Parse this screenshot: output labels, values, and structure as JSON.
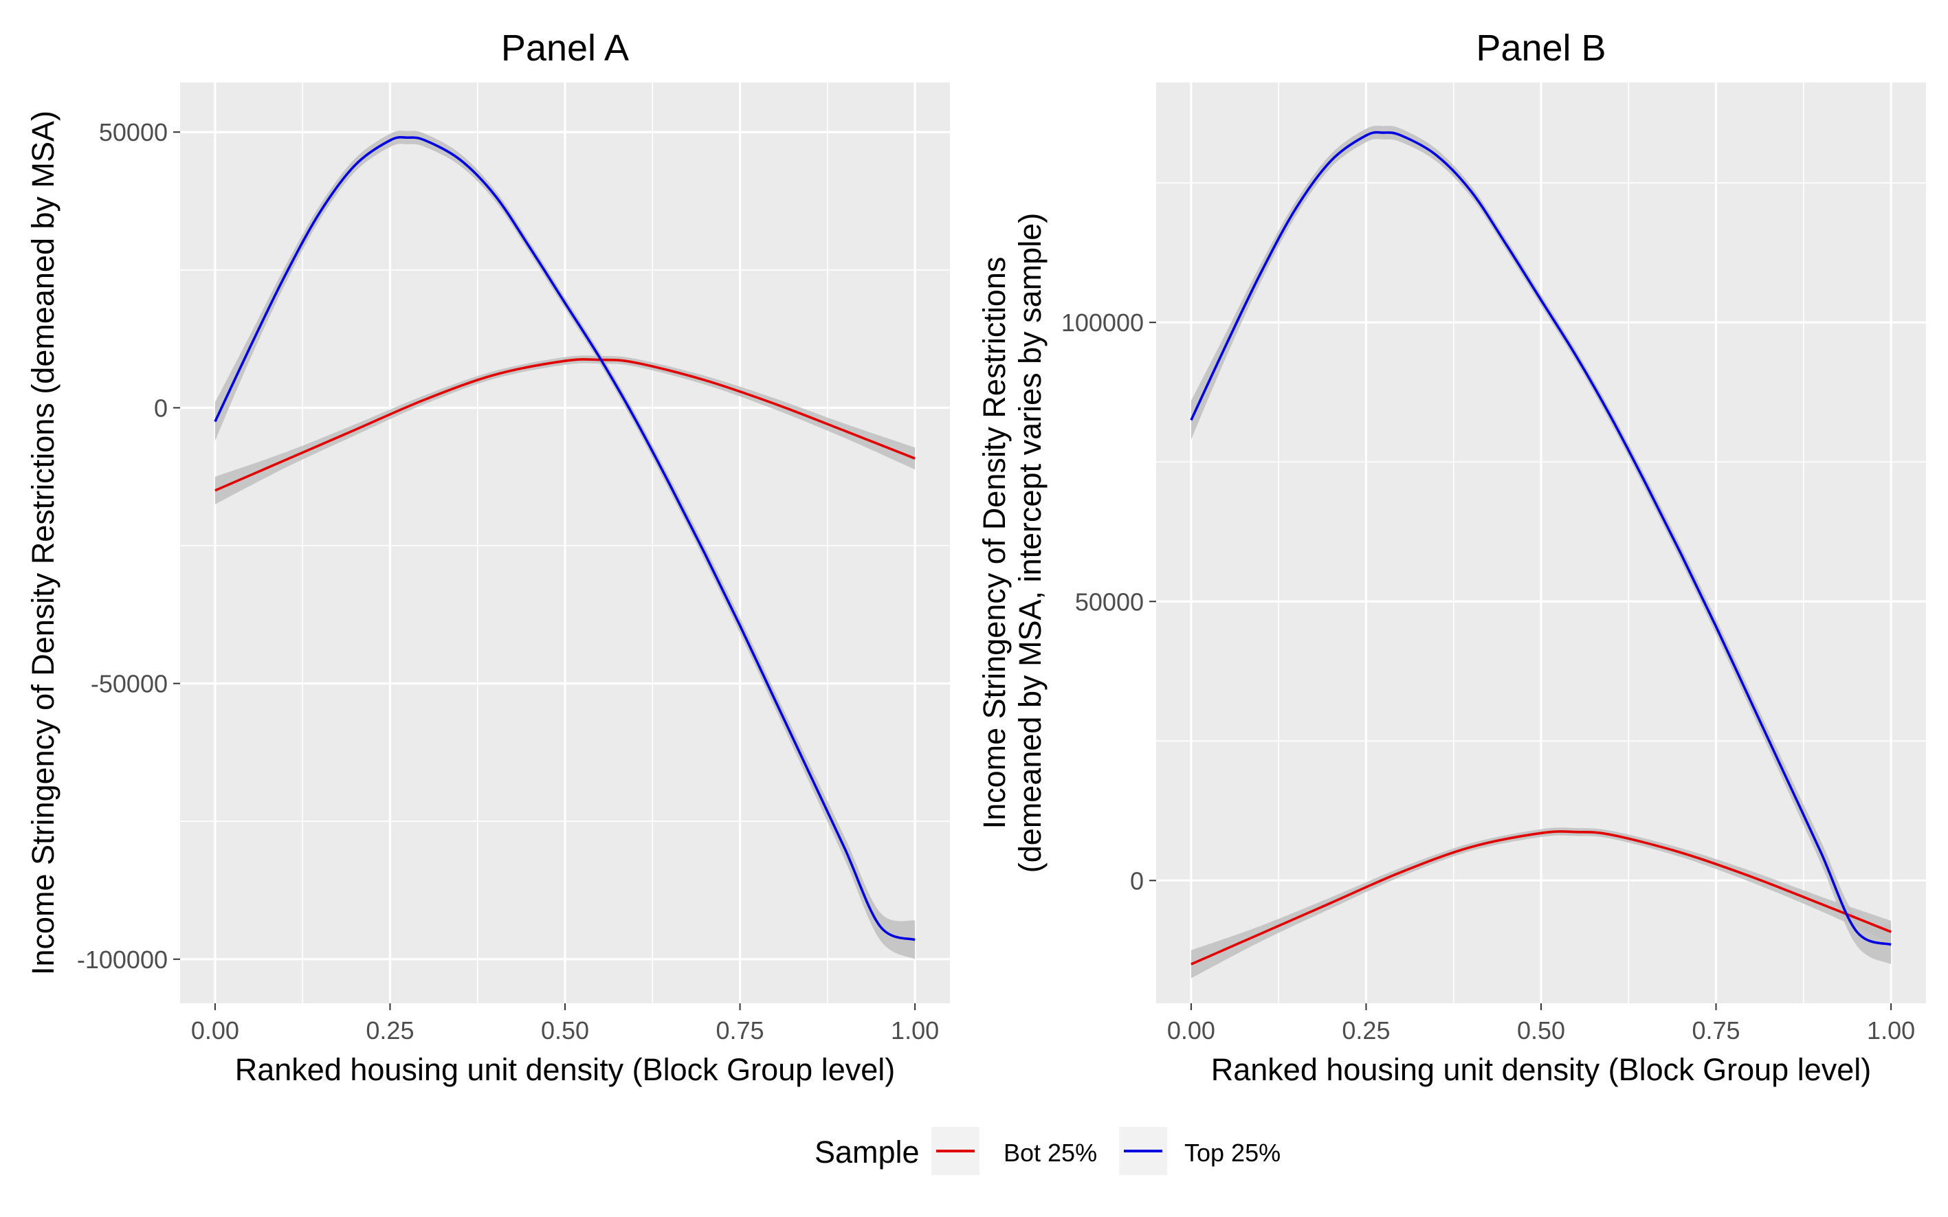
{
  "chart_data": [
    {
      "type": "line",
      "title": "Panel A",
      "xlabel": "Ranked housing unit density (Block Group level)",
      "ylabel": "Income Stringency of Density Restrictions (demeaned by MSA)",
      "xlim": [
        -0.05,
        1.05
      ],
      "ylim": [
        -108000,
        59000
      ],
      "x_ticks": [
        0,
        0.25,
        0.5,
        0.75,
        1
      ],
      "x_tick_labels": [
        "0.00",
        "0.25",
        "0.50",
        "0.75",
        "1.00"
      ],
      "y_ticks": [
        -100000,
        -50000,
        0,
        50000
      ],
      "y_tick_labels": [
        "-100000",
        "-50000",
        "0",
        "50000"
      ],
      "y_minor_ticks": [
        -75000,
        -25000,
        25000
      ],
      "grid": true,
      "confidence_band": true,
      "series": [
        {
          "name": "Bot 25%",
          "color": "#e00000",
          "x": [
            0,
            0.1,
            0.2,
            0.3,
            0.4,
            0.5,
            0.55,
            0.6,
            0.7,
            0.8,
            0.9,
            1.0
          ],
          "y": [
            -15000,
            -9500,
            -4000,
            1500,
            6000,
            8500,
            8700,
            8200,
            5000,
            700,
            -4200,
            -9200
          ],
          "band_halfwidth": [
            2500,
            1400,
            1000,
            800,
            700,
            700,
            700,
            700,
            800,
            1000,
            1300,
            2000
          ]
        },
        {
          "name": "Top 25%",
          "color": "#0000e0",
          "x": [
            0,
            0.05,
            0.1,
            0.15,
            0.2,
            0.25,
            0.275,
            0.3,
            0.35,
            0.4,
            0.45,
            0.5,
            0.55,
            0.6,
            0.65,
            0.7,
            0.75,
            0.8,
            0.85,
            0.9,
            0.95,
            1.0
          ],
          "y": [
            -2500,
            11000,
            24000,
            35500,
            44000,
            48500,
            49000,
            48500,
            45000,
            38500,
            29000,
            19000,
            9000,
            -2000,
            -14000,
            -26500,
            -39500,
            -53000,
            -66500,
            -80000,
            -94000,
            -96500
          ],
          "band_halfwidth": [
            3500,
            2200,
            1600,
            1300,
            1200,
            1200,
            1200,
            1200,
            1100,
            1000,
            1000,
            1000,
            1000,
            1100,
            1200,
            1300,
            1400,
            1500,
            1700,
            2000,
            2500,
            3500
          ]
        }
      ]
    },
    {
      "type": "line",
      "title": "Panel B",
      "xlabel": "Ranked housing unit density (Block Group level)",
      "ylabel_line1": "Income Stringency of Density Restrictions",
      "ylabel_line2": "(demeaned by MSA, intercept varies by sample)",
      "xlim": [
        -0.05,
        1.05
      ],
      "ylim": [
        -22000,
        143000
      ],
      "x_ticks": [
        0,
        0.25,
        0.5,
        0.75,
        1
      ],
      "x_tick_labels": [
        "0.00",
        "0.25",
        "0.50",
        "0.75",
        "1.00"
      ],
      "y_ticks": [
        0,
        50000,
        100000
      ],
      "y_tick_labels": [
        "0",
        "50000",
        "100000"
      ],
      "y_minor_ticks": [
        25000,
        75000,
        125000
      ],
      "grid": true,
      "confidence_band": true,
      "series": [
        {
          "name": "Bot 25%",
          "color": "#e00000",
          "x": [
            0,
            0.1,
            0.2,
            0.3,
            0.4,
            0.5,
            0.55,
            0.6,
            0.7,
            0.8,
            0.9,
            1.0
          ],
          "y": [
            -15000,
            -9500,
            -4000,
            1500,
            6000,
            8500,
            8700,
            8200,
            5000,
            700,
            -4200,
            -9200
          ],
          "band_halfwidth": [
            2500,
            1400,
            1000,
            800,
            700,
            700,
            700,
            700,
            800,
            1000,
            1300,
            2000
          ]
        },
        {
          "name": "Top 25%",
          "color": "#0000e0",
          "x": [
            0,
            0.05,
            0.1,
            0.15,
            0.2,
            0.25,
            0.275,
            0.3,
            0.35,
            0.4,
            0.45,
            0.5,
            0.55,
            0.6,
            0.65,
            0.7,
            0.75,
            0.8,
            0.85,
            0.9,
            0.95,
            1.0
          ],
          "y": [
            82500,
            96000,
            109000,
            120500,
            129000,
            133500,
            134000,
            133500,
            130000,
            123500,
            114000,
            104000,
            94000,
            83000,
            71000,
            58500,
            45500,
            32000,
            18500,
            5000,
            -9000,
            -11500
          ],
          "band_halfwidth": [
            3500,
            2200,
            1600,
            1300,
            1200,
            1200,
            1200,
            1200,
            1100,
            1000,
            1000,
            1000,
            1000,
            1100,
            1200,
            1300,
            1400,
            1500,
            1700,
            2000,
            2500,
            3500
          ]
        }
      ]
    }
  ],
  "legend": {
    "title": "Sample",
    "position": "bottom",
    "items": [
      {
        "label": "Bot 25%",
        "color": "#e00000"
      },
      {
        "label": "Top 25%",
        "color": "#0000e0"
      }
    ]
  },
  "colors": {
    "panel_background": "#ebebeb",
    "grid_major": "#ffffff",
    "confidence_band": "#bfbfbf"
  }
}
